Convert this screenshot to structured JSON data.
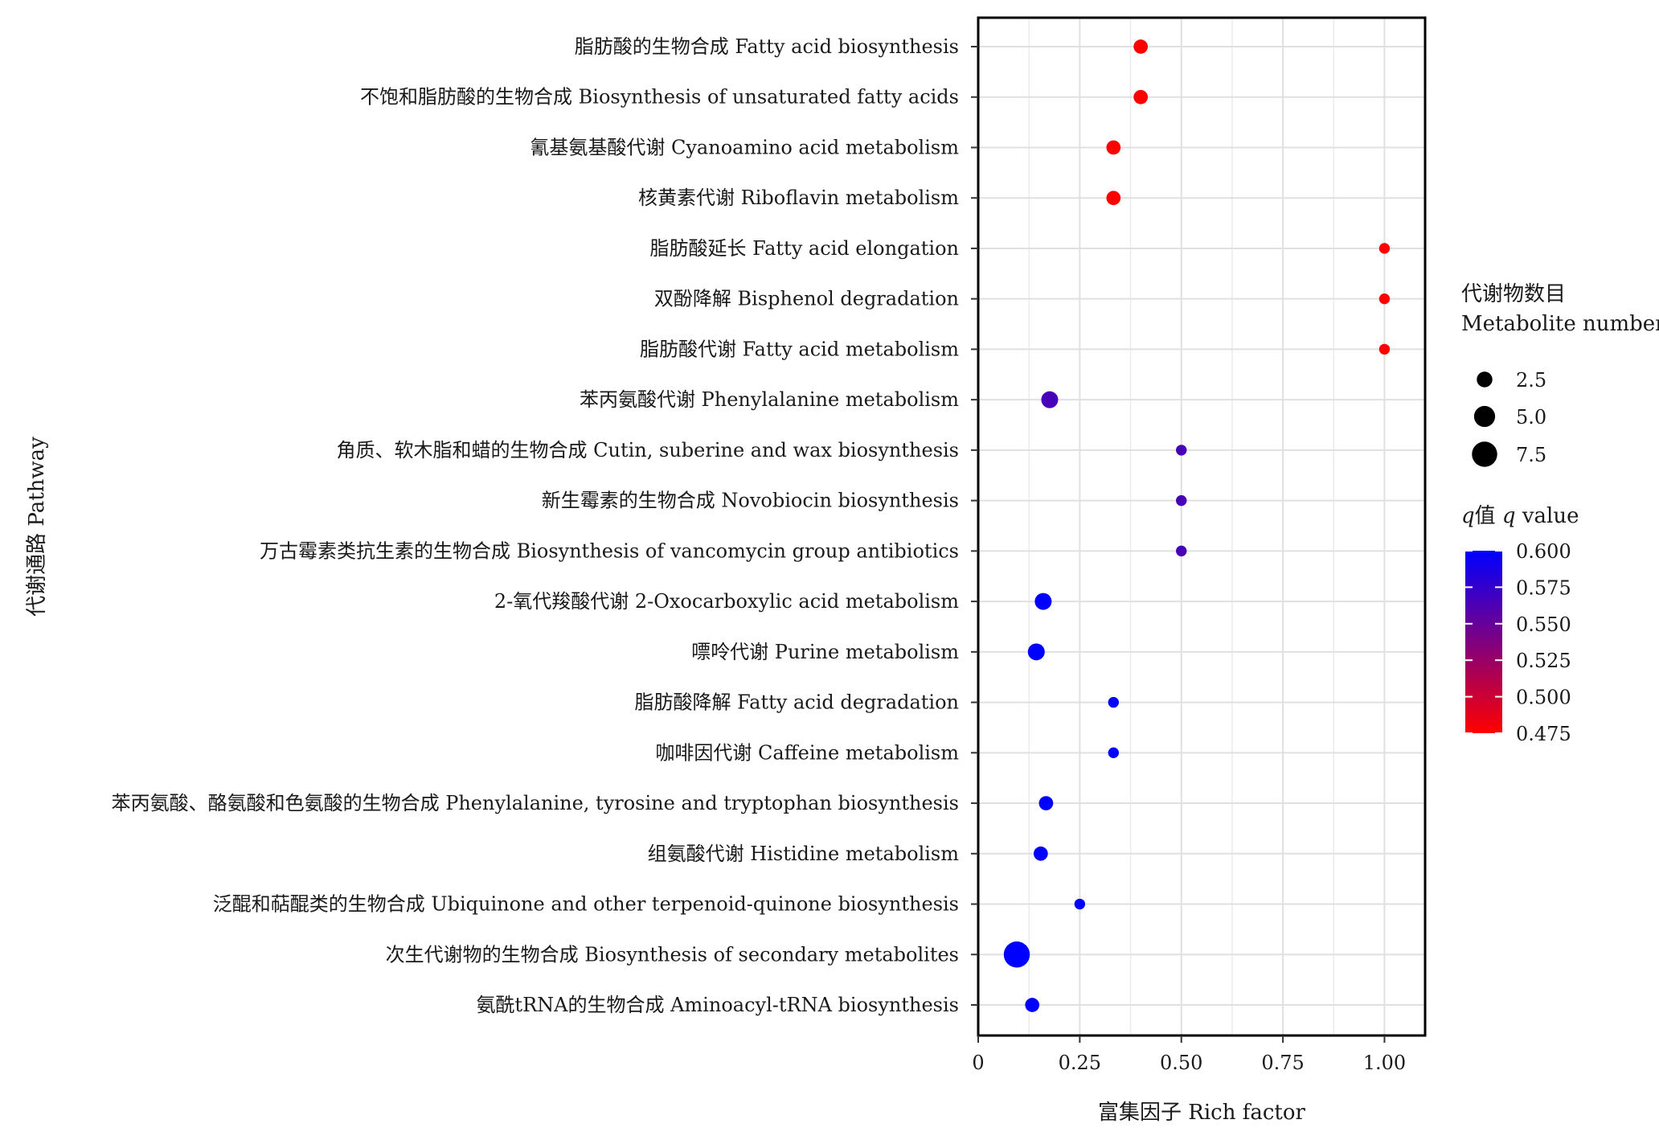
{
  "chart_data": {
    "type": "scatter",
    "xlabel": "富集因子 Rich factor",
    "ylabel": "代谢通路 Pathway",
    "xlim": [
      0,
      1.1
    ],
    "xticks": [
      0,
      0.25,
      0.5,
      0.75,
      1.0
    ],
    "xtick_labels": [
      "0",
      "0.25",
      "0.50",
      "0.75",
      "1.00"
    ],
    "grid": true,
    "legend_position": "right",
    "size_legend": {
      "title_line1": "代谢物数目",
      "title_line2": "Metabolite number",
      "values": [
        2.5,
        5.0,
        7.5
      ],
      "labels": [
        "2.5",
        "5.0",
        "7.5"
      ]
    },
    "color_legend": {
      "title_prefix": "q值 ",
      "title_italic": "q",
      "title_suffix": " value",
      "range": [
        0.475,
        0.6
      ],
      "ticks": [
        0.475,
        0.5,
        0.525,
        0.55,
        0.575,
        0.6
      ],
      "tick_labels": [
        "0.475",
        "0.500",
        "0.525",
        "0.550",
        "0.575",
        "0.600"
      ],
      "low_color": "#ff0000",
      "high_color": "#0000ff"
    },
    "points": [
      {
        "pathway": "脂肪酸的生物合成 Fatty acid biosynthesis",
        "rich_factor": 0.4,
        "count": 2,
        "q_value": 0.475
      },
      {
        "pathway": "不饱和脂肪酸的生物合成 Biosynthesis of unsaturated fatty acids",
        "rich_factor": 0.4,
        "count": 2,
        "q_value": 0.475
      },
      {
        "pathway": "氰基氨基酸代谢 Cyanoamino acid metabolism",
        "rich_factor": 0.333,
        "count": 2,
        "q_value": 0.475
      },
      {
        "pathway": "核黄素代谢 Riboflavin metabolism",
        "rich_factor": 0.333,
        "count": 2,
        "q_value": 0.475
      },
      {
        "pathway": "脂肪酸延长 Fatty acid elongation",
        "rich_factor": 1.0,
        "count": 1,
        "q_value": 0.475
      },
      {
        "pathway": "双酚降解 Bisphenol degradation",
        "rich_factor": 1.0,
        "count": 1,
        "q_value": 0.475
      },
      {
        "pathway": "脂肪酸代谢 Fatty acid metabolism",
        "rich_factor": 1.0,
        "count": 1,
        "q_value": 0.475
      },
      {
        "pathway": "苯丙氨酸代谢 Phenylalanine metabolism",
        "rich_factor": 0.176,
        "count": 3,
        "q_value": 0.565
      },
      {
        "pathway": "角质、软木脂和蜡的生物合成 Cutin, suberine and wax biosynthesis",
        "rich_factor": 0.5,
        "count": 1,
        "q_value": 0.565
      },
      {
        "pathway": "新生霉素的生物合成 Novobiocin biosynthesis",
        "rich_factor": 0.5,
        "count": 1,
        "q_value": 0.565
      },
      {
        "pathway": "万古霉素类抗生素的生物合成 Biosynthesis of vancomycin group antibiotics",
        "rich_factor": 0.5,
        "count": 1,
        "q_value": 0.565
      },
      {
        "pathway": "2-氧代羧酸代谢 2-Oxocarboxylic acid metabolism",
        "rich_factor": 0.16,
        "count": 3,
        "q_value": 0.6
      },
      {
        "pathway": "嘌呤代谢 Purine metabolism",
        "rich_factor": 0.143,
        "count": 3,
        "q_value": 0.6
      },
      {
        "pathway": "脂肪酸降解 Fatty acid degradation",
        "rich_factor": 0.333,
        "count": 1,
        "q_value": 0.6
      },
      {
        "pathway": "咖啡因代谢 Caffeine metabolism",
        "rich_factor": 0.333,
        "count": 1,
        "q_value": 0.6
      },
      {
        "pathway": "苯丙氨酸、酪氨酸和色氨酸的生物合成 Phenylalanine, tyrosine and tryptophan biosynthesis",
        "rich_factor": 0.167,
        "count": 2,
        "q_value": 0.6
      },
      {
        "pathway": "组氨酸代谢 Histidine metabolism",
        "rich_factor": 0.154,
        "count": 2,
        "q_value": 0.6
      },
      {
        "pathway": "泛醌和萜醌类的生物合成 Ubiquinone and other terpenoid-quinone biosynthesis",
        "rich_factor": 0.25,
        "count": 1,
        "q_value": 0.6
      },
      {
        "pathway": "次生代谢物的生物合成 Biosynthesis of secondary metabolites",
        "rich_factor": 0.095,
        "count": 8,
        "q_value": 0.6
      },
      {
        "pathway": "氨酰tRNA的生物合成 Aminoacyl-tRNA biosynthesis",
        "rich_factor": 0.133,
        "count": 2,
        "q_value": 0.6
      }
    ]
  }
}
